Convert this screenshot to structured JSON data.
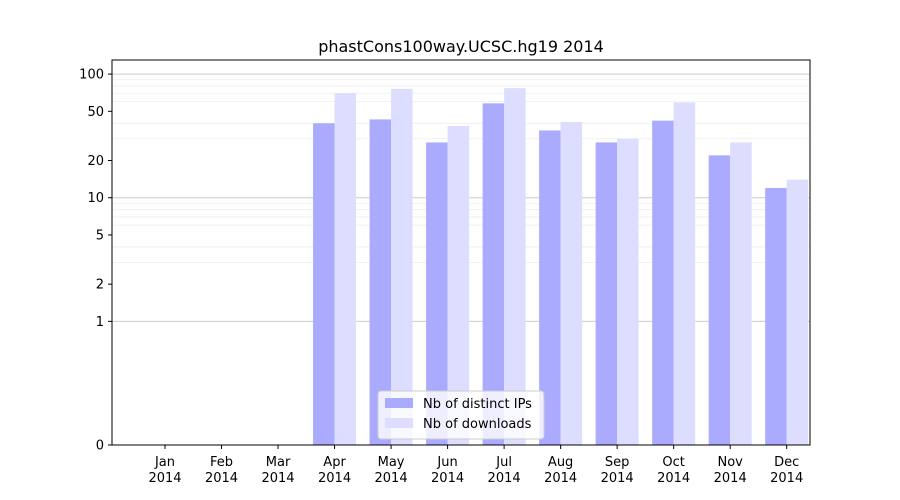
{
  "chart_data": {
    "type": "bar",
    "title": "phastCons100way.UCSC.hg19 2014",
    "xlabel": "",
    "ylabel": "",
    "y_scale": "symlog",
    "ylim": [
      0,
      130
    ],
    "y_ticks": [
      0,
      1,
      2,
      5,
      10,
      20,
      50,
      100
    ],
    "grid": "horizontal major and minor",
    "legend_position": "bottom-center",
    "categories": [
      [
        "Jan",
        "2014"
      ],
      [
        "Feb",
        "2014"
      ],
      [
        "Mar",
        "2014"
      ],
      [
        "Apr",
        "2014"
      ],
      [
        "May",
        "2014"
      ],
      [
        "Jun",
        "2014"
      ],
      [
        "Jul",
        "2014"
      ],
      [
        "Aug",
        "2014"
      ],
      [
        "Sep",
        "2014"
      ],
      [
        "Oct",
        "2014"
      ],
      [
        "Nov",
        "2014"
      ],
      [
        "Dec",
        "2014"
      ]
    ],
    "series": [
      {
        "name": "Nb of distinct IPs",
        "color": "#aaaaff",
        "values": [
          0,
          0,
          0,
          40,
          43,
          28,
          58,
          35,
          28,
          42,
          22,
          12
        ]
      },
      {
        "name": "Nb of downloads",
        "color": "#ddddff",
        "values": [
          0,
          0,
          0,
          70,
          76,
          38,
          77,
          41,
          30,
          59,
          28,
          14
        ]
      }
    ]
  }
}
